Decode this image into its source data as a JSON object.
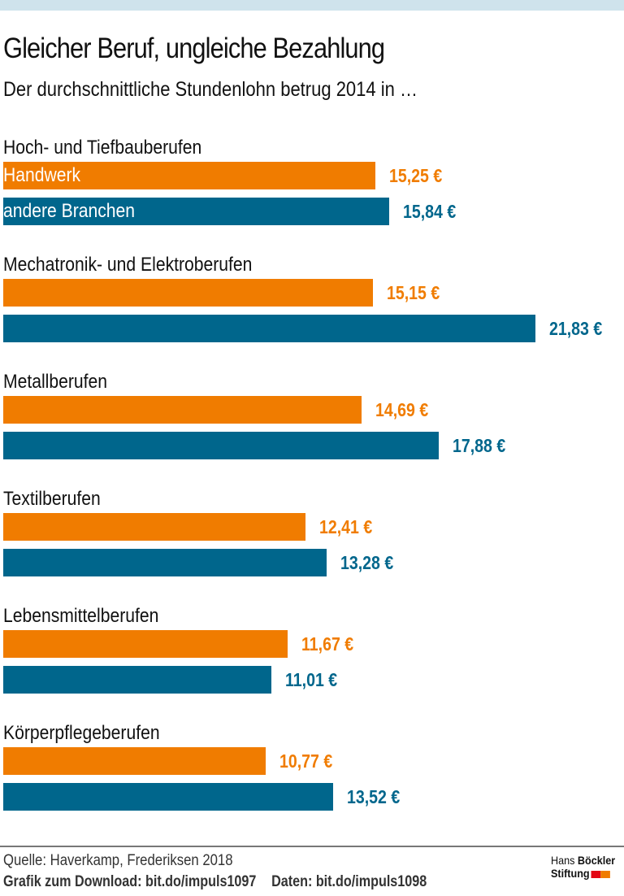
{
  "title": "Gleicher Beruf, ungleiche Bezahlung",
  "subtitle": "Der durchschnittliche Stundenlohn betrug 2014 in …",
  "chart_data": {
    "type": "bar",
    "orientation": "horizontal",
    "unit": "€",
    "categories": [
      "Hoch- und Tiefbauberufen",
      "Mechatronik- und Elektroberufen",
      "Metallberufen",
      "Textilberufen",
      "Lebensmittelberufen",
      "Körperpflegeberufen"
    ],
    "series": [
      {
        "name": "Handwerk",
        "color": "#f07c00",
        "values": [
          15.25,
          15.15,
          14.69,
          12.41,
          11.67,
          10.77
        ],
        "labels": [
          "15,25 €",
          "15,15 €",
          "14,69 €",
          "12,41 €",
          "11,67 €",
          "10,77 €"
        ]
      },
      {
        "name": "andere Branchen",
        "color": "#00668c",
        "values": [
          15.84,
          21.83,
          17.88,
          13.28,
          11.01,
          13.52
        ],
        "labels": [
          "15,84 €",
          "21,83 €",
          "17,88 €",
          "13,28 €",
          "11,01 €",
          "13,52 €"
        ]
      }
    ],
    "xlim": [
      0,
      21.83
    ],
    "grid": false,
    "legend": "inside first bars"
  },
  "footer": {
    "source": "Quelle: Haverkamp, Frederiksen 2018",
    "download": "Grafik zum Download: bit.do/impuls1097",
    "data": "Daten: bit.do/impuls1098"
  },
  "logo": {
    "line1a": "Hans",
    "line1b": "Böckler",
    "line2": "Stiftung",
    "colors": [
      "#e30613",
      "#f07c00"
    ]
  }
}
